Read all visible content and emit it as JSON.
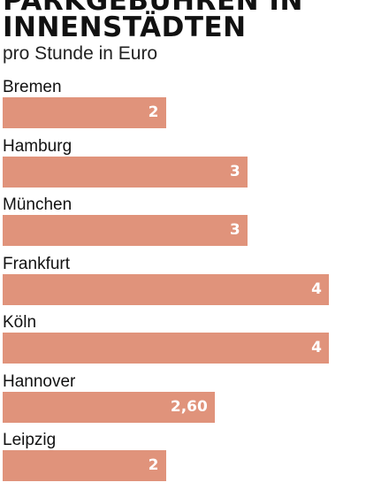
{
  "chart_data": {
    "type": "bar",
    "title": "Parkgebühren in Innenstädten",
    "subtitle": "pro Stunde in Euro",
    "categories": [
      "Bremen",
      "Hamburg",
      "München",
      "Frankfurt",
      "Köln",
      "Hannover",
      "Leipzig"
    ],
    "values": [
      2,
      3,
      3,
      4,
      4,
      2.6,
      2
    ],
    "value_labels": [
      "2",
      "3",
      "3",
      "4",
      "4",
      "2,60",
      "2"
    ],
    "xlim": [
      0,
      4
    ],
    "grid": false,
    "legend": "none",
    "bar_color": "#e0937b",
    "value_label_color": "#ffffff",
    "orientation": "horizontal"
  }
}
